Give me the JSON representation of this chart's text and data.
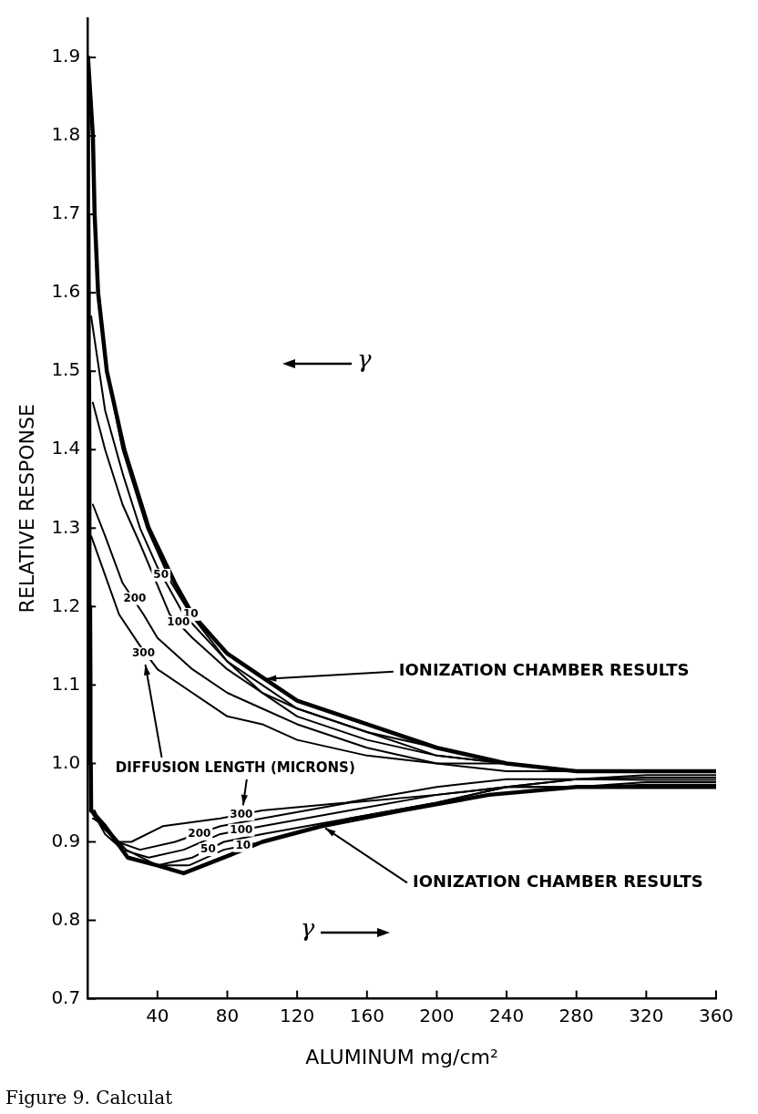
{
  "chart_data": {
    "type": "line",
    "xlabel": "ALUMINUM mg/cm²",
    "ylabel": "RELATIVE RESPONSE",
    "xlim": [
      0,
      360
    ],
    "ylim": [
      0.7,
      1.95
    ],
    "xticks": [
      40,
      80,
      120,
      160,
      200,
      240,
      280,
      320,
      360
    ],
    "yticks": [
      0.7,
      0.8,
      0.9,
      {
        "value": 1,
        "label": "1.0"
      },
      1.1,
      1.2,
      1.3,
      1.4,
      1.5,
      1.6,
      1.7,
      1.8,
      1.9
    ],
    "marker": "none",
    "series": [
      {
        "color": "#000000",
        "x": [
          0.2,
          3,
          4,
          6,
          11,
          21,
          35,
          50,
          60,
          80,
          100,
          120,
          160,
          200,
          240,
          280,
          320,
          360
        ],
        "values": [
          1.9,
          1.8,
          1.7,
          1.6,
          1.5,
          1.4,
          1.3,
          1.23,
          1.19,
          1.14,
          1.11,
          1.08,
          1.05,
          1.02,
          1.0,
          0.99,
          0.99,
          0.99
        ]
      },
      {
        "color": "#000000",
        "x": [
          2,
          4,
          6,
          11,
          20,
          34,
          48,
          59,
          80,
          100,
          120,
          160,
          200,
          240,
          280,
          320,
          360
        ],
        "values": [
          1.85,
          1.7,
          1.6,
          1.5,
          1.4,
          1.3,
          1.23,
          1.19,
          1.13,
          1.1,
          1.07,
          1.04,
          1.02,
          1.0,
          0.99,
          0.99,
          0.99
        ]
      },
      {
        "color": "#000000",
        "x": [
          2,
          10,
          20,
          30,
          40,
          55,
          80,
          100,
          120,
          160,
          200,
          240,
          280,
          320,
          360
        ],
        "values": [
          1.57,
          1.45,
          1.37,
          1.3,
          1.25,
          1.19,
          1.13,
          1.09,
          1.07,
          1.04,
          1.01,
          1.0,
          0.99,
          0.99,
          0.99
        ]
      },
      {
        "color": "#000000",
        "x": [
          3,
          10,
          20,
          30,
          47,
          60,
          80,
          100,
          120,
          160,
          200,
          240,
          280,
          320,
          360
        ],
        "values": [
          1.46,
          1.4,
          1.33,
          1.28,
          1.19,
          1.16,
          1.12,
          1.09,
          1.06,
          1.03,
          1.01,
          1.0,
          0.99,
          0.99,
          0.99
        ]
      },
      {
        "color": "#000000",
        "x": [
          3,
          10,
          20,
          32,
          40,
          60,
          80,
          100,
          120,
          160,
          200,
          240,
          280,
          320,
          360
        ],
        "values": [
          1.33,
          1.29,
          1.23,
          1.19,
          1.16,
          1.12,
          1.09,
          1.07,
          1.05,
          1.02,
          1.0,
          1.0,
          0.99,
          0.99,
          0.99
        ]
      },
      {
        "color": "#000000",
        "x": [
          2,
          10,
          18,
          30,
          40,
          60,
          80,
          100,
          120,
          160,
          200,
          240,
          280,
          320,
          360
        ],
        "values": [
          1.29,
          1.24,
          1.19,
          1.15,
          1.12,
          1.09,
          1.06,
          1.05,
          1.03,
          1.01,
          1.0,
          0.99,
          0.99,
          0.99,
          0.99
        ]
      },
      {
        "color": "#000000",
        "x": [
          2,
          10,
          23,
          40,
          55,
          78,
          100,
          134,
          180,
          230,
          280,
          320,
          360
        ],
        "values": [
          0.94,
          0.92,
          0.88,
          0.87,
          0.86,
          0.88,
          0.9,
          0.92,
          0.94,
          0.96,
          0.97,
          0.97,
          0.97
        ]
      },
      {
        "color": "#000000",
        "x": [
          3,
          10,
          23,
          40,
          58,
          78,
          100,
          150,
          200,
          240,
          280,
          320,
          360
        ],
        "values": [
          0.93,
          0.92,
          0.88,
          0.87,
          0.87,
          0.89,
          0.9,
          0.93,
          0.95,
          0.97,
          0.97,
          0.973,
          0.973
        ]
      },
      {
        "color": "#000000",
        "x": [
          4,
          10,
          22,
          40,
          60,
          78,
          100,
          150,
          200,
          240,
          280,
          320,
          360
        ],
        "values": [
          0.93,
          0.92,
          0.89,
          0.87,
          0.88,
          0.9,
          0.91,
          0.93,
          0.95,
          0.97,
          0.97,
          0.976,
          0.976
        ]
      },
      {
        "color": "#000000",
        "x": [
          5,
          10,
          20,
          35,
          55,
          76,
          100,
          150,
          200,
          240,
          280,
          320,
          360
        ],
        "values": [
          0.93,
          0.91,
          0.89,
          0.88,
          0.89,
          0.91,
          0.92,
          0.94,
          0.96,
          0.97,
          0.98,
          0.979,
          0.979
        ]
      },
      {
        "color": "#000000",
        "x": [
          3,
          8,
          17,
          30,
          50,
          76,
          100,
          150,
          200,
          240,
          280,
          320,
          360
        ],
        "values": [
          0.935,
          0.92,
          0.9,
          0.89,
          0.9,
          0.92,
          0.93,
          0.95,
          0.96,
          0.97,
          0.98,
          0.982,
          0.982
        ]
      },
      {
        "color": "#000000",
        "x": [
          4,
          8,
          17,
          25,
          43,
          76,
          100,
          148,
          200,
          240,
          280,
          320,
          360
        ],
        "values": [
          0.94,
          0.92,
          0.9,
          0.9,
          0.92,
          0.93,
          0.94,
          0.95,
          0.97,
          0.98,
          0.98,
          0.985,
          0.985
        ]
      },
      {
        "color": "#000000",
        "x": [
          2,
          1.8,
          1.6,
          1.4,
          1,
          0.8,
          0.6,
          0.4,
          0.2
        ],
        "values": [
          0.94,
          1.0,
          1.1,
          1.2,
          1.4,
          1.5,
          1.6,
          1.7,
          1.9
        ]
      }
    ],
    "annotations": [
      {
        "text": "10",
        "x": 59,
        "y": 1.19
      },
      {
        "text": "50",
        "x": 42,
        "y": 1.24
      },
      {
        "text": "100",
        "x": 52,
        "y": 1.18
      },
      {
        "text": "200",
        "x": 27,
        "y": 1.21
      },
      {
        "text": "300",
        "x": 32,
        "y": 1.14
      },
      {
        "text": "300",
        "x": 88,
        "y": 0.935
      },
      {
        "text": "200",
        "x": 64,
        "y": 0.91
      },
      {
        "text": "100",
        "x": 88,
        "y": 0.915
      },
      {
        "text": "50",
        "x": 69,
        "y": 0.89
      },
      {
        "text": "10",
        "x": 89,
        "y": 0.895
      },
      {
        "text": "IONIZATION CHAMBER RESULTS",
        "x": 100,
        "y": 1.11
      },
      {
        "text": "IONIZATION CHAMBER RESULTS",
        "x": 134,
        "y": 0.92
      },
      "DIFFUSION LENGTH (MICRONS)",
      "γ",
      "γ",
      "Figure 9. Calculat"
    ]
  }
}
